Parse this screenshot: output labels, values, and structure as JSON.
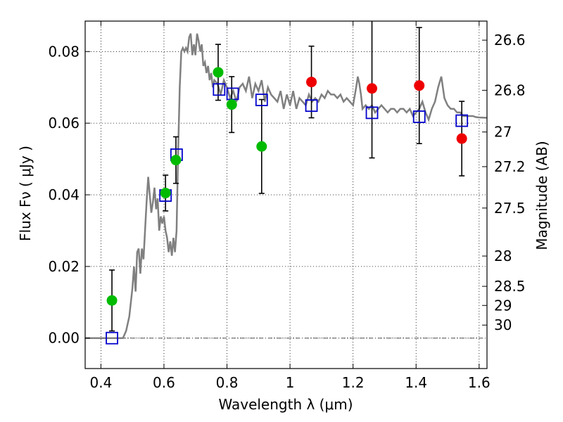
{
  "chart_data": {
    "type": "scatter",
    "xlabel": "Wavelength  λ (μm)",
    "ylabel": "Flux  Fν  ( μJy )",
    "ylabel_right": "Magnitude (AB)",
    "xlim": [
      0.35,
      1.625
    ],
    "ylim": [
      -0.0085,
      0.0885
    ],
    "grid": true,
    "x_ticks": [
      0.4,
      0.6,
      0.8,
      1.0,
      1.2,
      1.4,
      1.6
    ],
    "x_tick_labels": [
      "0.4",
      "0.6",
      "0.8",
      "1",
      "1.2",
      "1.4",
      "1.6"
    ],
    "y_ticks": [
      0.0,
      0.02,
      0.04,
      0.06,
      0.08
    ],
    "y_tick_labels": [
      "0.00",
      "0.02",
      "0.04",
      "0.06",
      "0.08"
    ],
    "mag_ticks": [
      26.6,
      26.8,
      27,
      27.2,
      27.5,
      28,
      28.5,
      29,
      30
    ],
    "mag_tick_labels": [
      "26.6",
      "26.8",
      "27",
      "27.2",
      "27.5",
      "28",
      "28.5",
      "29",
      "30"
    ],
    "colors": {
      "spectrum": "#808080",
      "green": "#00bb00",
      "red": "#ee0000",
      "model_box": "#0000cc",
      "errorbar": "#000000",
      "zero_line": "#555555"
    },
    "spectrum": {
      "x": [
        0.35,
        0.46,
        0.47,
        0.48,
        0.49,
        0.5,
        0.505,
        0.51,
        0.515,
        0.52,
        0.525,
        0.53,
        0.535,
        0.54,
        0.545,
        0.55,
        0.555,
        0.56,
        0.565,
        0.57,
        0.575,
        0.58,
        0.585,
        0.59,
        0.595,
        0.6,
        0.605,
        0.61,
        0.615,
        0.62,
        0.625,
        0.63,
        0.635,
        0.64,
        0.645,
        0.65,
        0.655,
        0.66,
        0.665,
        0.67,
        0.675,
        0.68,
        0.685,
        0.69,
        0.695,
        0.7,
        0.705,
        0.71,
        0.715,
        0.72,
        0.725,
        0.73,
        0.735,
        0.74,
        0.745,
        0.75,
        0.755,
        0.76,
        0.77,
        0.78,
        0.79,
        0.8,
        0.81,
        0.82,
        0.83,
        0.84,
        0.85,
        0.86,
        0.87,
        0.88,
        0.89,
        0.9,
        0.91,
        0.92,
        0.93,
        0.94,
        0.95,
        0.96,
        0.97,
        0.98,
        0.99,
        1.0,
        1.01,
        1.02,
        1.03,
        1.04,
        1.05,
        1.06,
        1.07,
        1.08,
        1.09,
        1.1,
        1.11,
        1.12,
        1.13,
        1.14,
        1.15,
        1.16,
        1.17,
        1.18,
        1.19,
        1.2,
        1.21,
        1.215,
        1.22,
        1.225,
        1.23,
        1.24,
        1.25,
        1.26,
        1.27,
        1.28,
        1.29,
        1.3,
        1.31,
        1.32,
        1.33,
        1.34,
        1.35,
        1.36,
        1.37,
        1.38,
        1.39,
        1.4,
        1.41,
        1.42,
        1.43,
        1.44,
        1.45,
        1.46,
        1.47,
        1.48,
        1.49,
        1.5,
        1.51,
        1.52,
        1.53,
        1.54,
        1.55,
        1.56,
        1.57,
        1.58,
        1.59,
        1.6,
        1.625
      ],
      "y": [
        0.0,
        0.0,
        0.0,
        0.002,
        0.006,
        0.014,
        0.02,
        0.013,
        0.024,
        0.025,
        0.018,
        0.025,
        0.022,
        0.03,
        0.038,
        0.045,
        0.04,
        0.035,
        0.038,
        0.042,
        0.036,
        0.039,
        0.03,
        0.034,
        0.032,
        0.034,
        0.03,
        0.028,
        0.024,
        0.027,
        0.023,
        0.028,
        0.024,
        0.03,
        0.052,
        0.07,
        0.08,
        0.081,
        0.08,
        0.081,
        0.08,
        0.084,
        0.085,
        0.079,
        0.082,
        0.079,
        0.085,
        0.083,
        0.08,
        0.082,
        0.076,
        0.077,
        0.074,
        0.076,
        0.072,
        0.074,
        0.07,
        0.072,
        0.071,
        0.068,
        0.072,
        0.07,
        0.067,
        0.069,
        0.066,
        0.07,
        0.071,
        0.069,
        0.073,
        0.067,
        0.071,
        0.069,
        0.072,
        0.066,
        0.07,
        0.068,
        0.067,
        0.066,
        0.069,
        0.064,
        0.068,
        0.065,
        0.069,
        0.064,
        0.067,
        0.066,
        0.065,
        0.068,
        0.066,
        0.067,
        0.066,
        0.068,
        0.067,
        0.069,
        0.068,
        0.068,
        0.067,
        0.068,
        0.066,
        0.067,
        0.066,
        0.065,
        0.07,
        0.073,
        0.071,
        0.068,
        0.064,
        0.065,
        0.064,
        0.065,
        0.063,
        0.064,
        0.065,
        0.064,
        0.063,
        0.064,
        0.064,
        0.063,
        0.064,
        0.064,
        0.063,
        0.064,
        0.062,
        0.063,
        0.064,
        0.066,
        0.063,
        0.061,
        0.064,
        0.066,
        0.07,
        0.073,
        0.067,
        0.065,
        0.064,
        0.064,
        0.063,
        0.063,
        0.062,
        0.062,
        0.062,
        0.062,
        0.0617,
        0.0616,
        0.0615
      ]
    },
    "green_points": [
      {
        "x": 0.435,
        "y": 0.0105,
        "err": 0.0085
      },
      {
        "x": 0.605,
        "y": 0.0405,
        "err": 0.005
      },
      {
        "x": 0.638,
        "y": 0.0497,
        "err": 0.0065
      },
      {
        "x": 0.772,
        "y": 0.0742,
        "err": 0.0078
      },
      {
        "x": 0.815,
        "y": 0.0652,
        "err": 0.0078
      },
      {
        "x": 0.91,
        "y": 0.0535,
        "err": 0.0131
      }
    ],
    "red_points": [
      {
        "x": 1.068,
        "y": 0.0715,
        "err": 0.01
      },
      {
        "x": 1.26,
        "y": 0.0697,
        "err": 0.0194
      },
      {
        "x": 1.41,
        "y": 0.0705,
        "err": 0.0162
      },
      {
        "x": 1.545,
        "y": 0.0557,
        "err": 0.0104
      }
    ],
    "model_boxes": [
      {
        "x": 0.435,
        "y": 0.0
      },
      {
        "x": 0.605,
        "y": 0.0398
      },
      {
        "x": 0.64,
        "y": 0.0512
      },
      {
        "x": 0.775,
        "y": 0.0694
      },
      {
        "x": 0.818,
        "y": 0.0682
      },
      {
        "x": 0.91,
        "y": 0.0665
      },
      {
        "x": 1.068,
        "y": 0.0649
      },
      {
        "x": 1.26,
        "y": 0.0629
      },
      {
        "x": 1.41,
        "y": 0.0618
      },
      {
        "x": 1.545,
        "y": 0.0607
      }
    ]
  }
}
